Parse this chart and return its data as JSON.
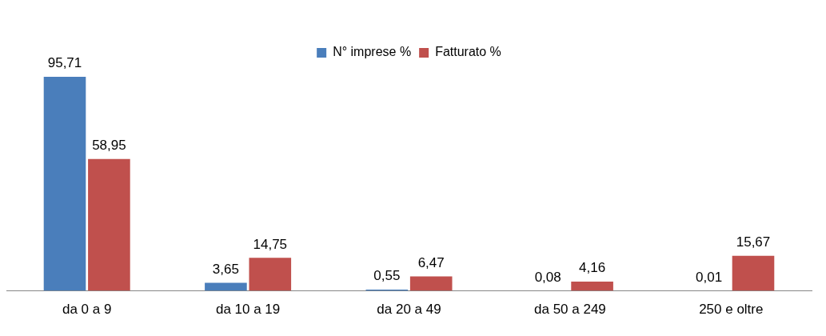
{
  "chart_data": {
    "type": "bar",
    "categories": [
      "da 0 a 9",
      "da 10 a 19",
      "da 20 a 49",
      "da 50 a 249",
      "250 e oltre"
    ],
    "series": [
      {
        "name": "N° imprese %",
        "color": "#4a7ebb",
        "values": [
          95.71,
          3.65,
          0.55,
          0.08,
          0.01
        ],
        "value_labels": [
          "95,71",
          "3,65",
          "0,55",
          "0,08",
          "0,01"
        ]
      },
      {
        "name": "Fatturato %",
        "color": "#c0504d",
        "values": [
          58.95,
          14.75,
          6.47,
          4.16,
          15.67
        ],
        "value_labels": [
          "58,95",
          "14,75",
          "6,47",
          "4,16",
          "15,67"
        ]
      }
    ],
    "legend": "top",
    "grid": false
  }
}
